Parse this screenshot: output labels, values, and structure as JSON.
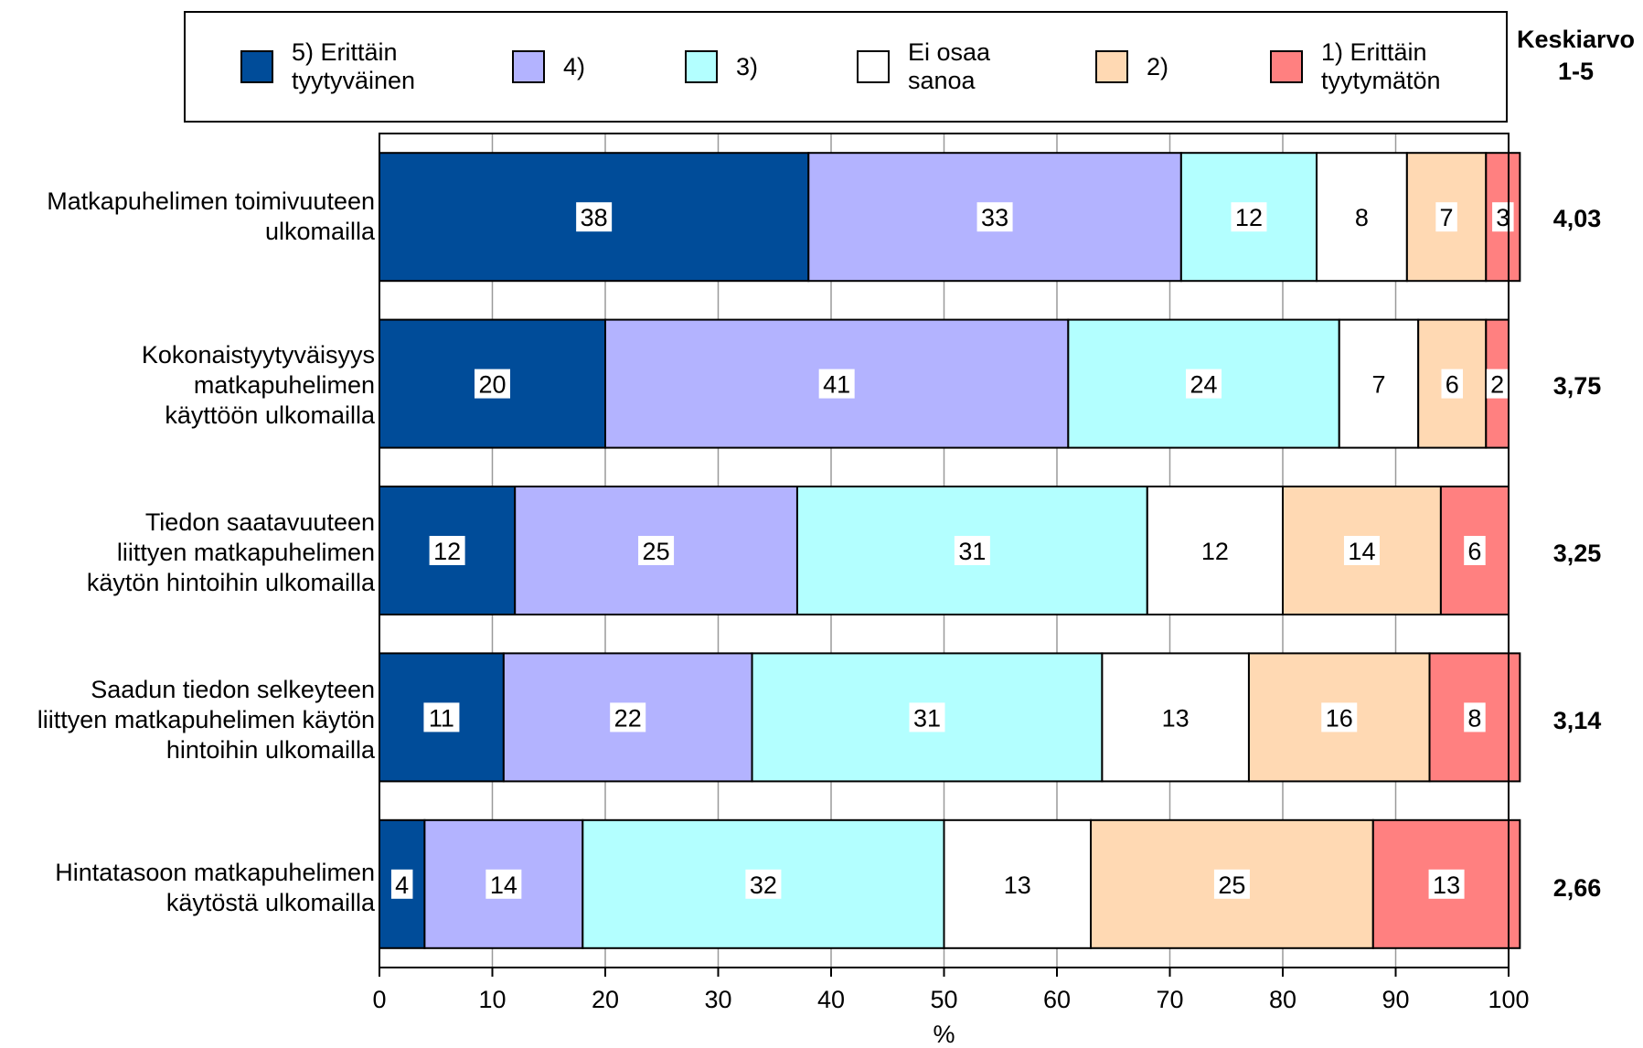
{
  "chart_data": {
    "type": "bar",
    "orientation": "horizontal",
    "stacked": true,
    "xlabel": "%",
    "xlim": [
      0,
      100
    ],
    "x_ticks": [
      "0",
      "10",
      "20",
      "30",
      "40",
      "50",
      "60",
      "70",
      "80",
      "90",
      "100"
    ],
    "grid": "vertical",
    "legend_position": "top",
    "categories": [
      "Matkapuhelimen toimivuuteen\nulkomailla",
      "Kokonaistyytyväisyys\nmatkapuhelimen\nkäyttöön ulkomailla",
      "Tiedon saatavuuteen\nliittyen matkapuhelimen\nkäytön hintoihin ulkomailla",
      "Saadun tiedon selkeyteen\nliittyen matkapuhelimen käytön\nhintoihin ulkomailla",
      "Hintatasoon matkapuhelimen\nkäytöstä ulkomailla"
    ],
    "series": [
      {
        "name": "5) Erittäin\ntyytyväinen",
        "color": "#004c99",
        "values": [
          38,
          20,
          12,
          11,
          4
        ]
      },
      {
        "name": "4)",
        "color": "#b3b3ff",
        "values": [
          33,
          41,
          25,
          22,
          14
        ]
      },
      {
        "name": "3)",
        "color": "#b3ffff",
        "values": [
          12,
          24,
          31,
          31,
          32
        ]
      },
      {
        "name": "Ei osaa\nsanoa",
        "color": "#ffffff",
        "values": [
          8,
          7,
          12,
          13,
          13
        ]
      },
      {
        "name": "2)",
        "color": "#ffd9b3",
        "values": [
          7,
          6,
          14,
          16,
          25
        ]
      },
      {
        "name": "1) Erittäin\ntyytymätön",
        "color": "#ff8080",
        "values": [
          3,
          2,
          6,
          8,
          13
        ]
      }
    ],
    "mean_header": "Keskiarvo\n1-5",
    "means": [
      "4,03",
      "3,75",
      "3,25",
      "3,14",
      "2,66"
    ]
  }
}
